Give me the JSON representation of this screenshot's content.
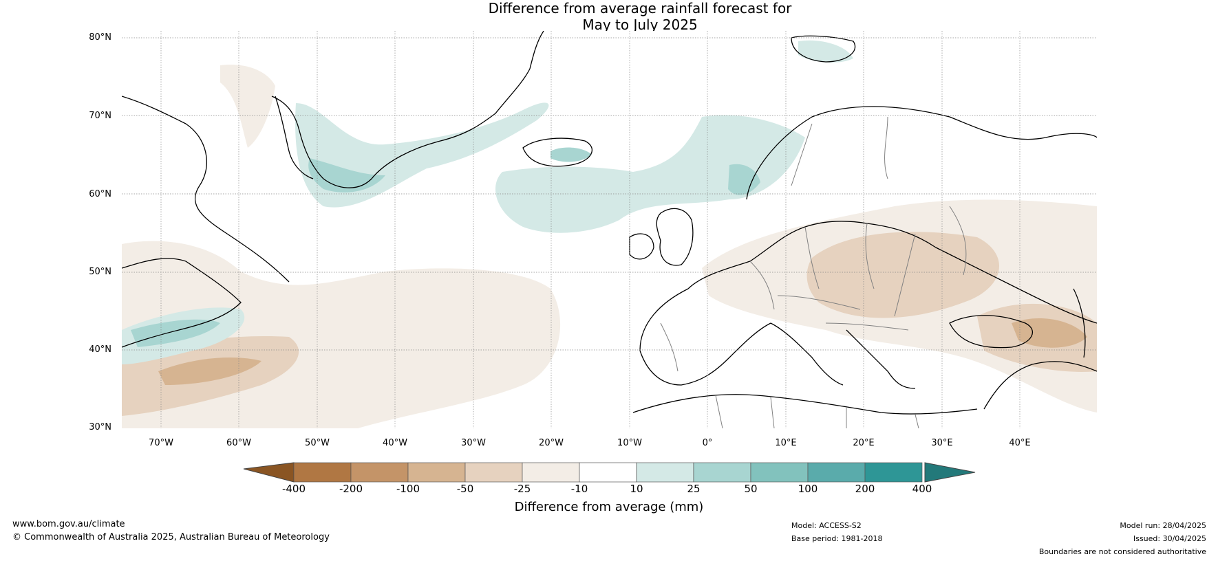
{
  "title": {
    "line1": "Difference from average rainfall forecast for",
    "line2": "May to July 2025"
  },
  "map": {
    "lat_labels": [
      "80°N",
      "70°N",
      "60°N",
      "50°N",
      "40°N",
      "30°N"
    ],
    "lon_labels": [
      "70°W",
      "60°W",
      "50°W",
      "40°W",
      "30°W",
      "20°W",
      "10°W",
      "0°",
      "10°E",
      "20°E",
      "30°E",
      "40°E"
    ],
    "extent": {
      "lon": [
        -75,
        50
      ],
      "lat": [
        30,
        81
      ]
    },
    "gridlines": true
  },
  "colorbar": {
    "title": "Difference from average (mm)",
    "ticks": [
      "-400",
      "-200",
      "-100",
      "-50",
      "-25",
      "-10",
      "10",
      "25",
      "50",
      "100",
      "200",
      "400"
    ],
    "colors": [
      "#8a5523",
      "#b07743",
      "#c49468",
      "#d6b491",
      "#e6d2bf",
      "#f3ede6",
      "#ffffff",
      "#d4e9e6",
      "#a8d5d1",
      "#82c2bd",
      "#5aabab",
      "#2e9696",
      "#23797a"
    ]
  },
  "footer": {
    "website": "www.bom.gov.au/climate",
    "copyright": "© Commonwealth of Australia 2025, Australian Bureau of Meteorology",
    "model": "Model: ACCESS-S2",
    "base_period": "Base period: 1981-2018",
    "model_run": "Model run: 28/04/2025",
    "issued": "Issued: 30/04/2025",
    "disclaimer": "Boundaries are not considered authoritative"
  }
}
